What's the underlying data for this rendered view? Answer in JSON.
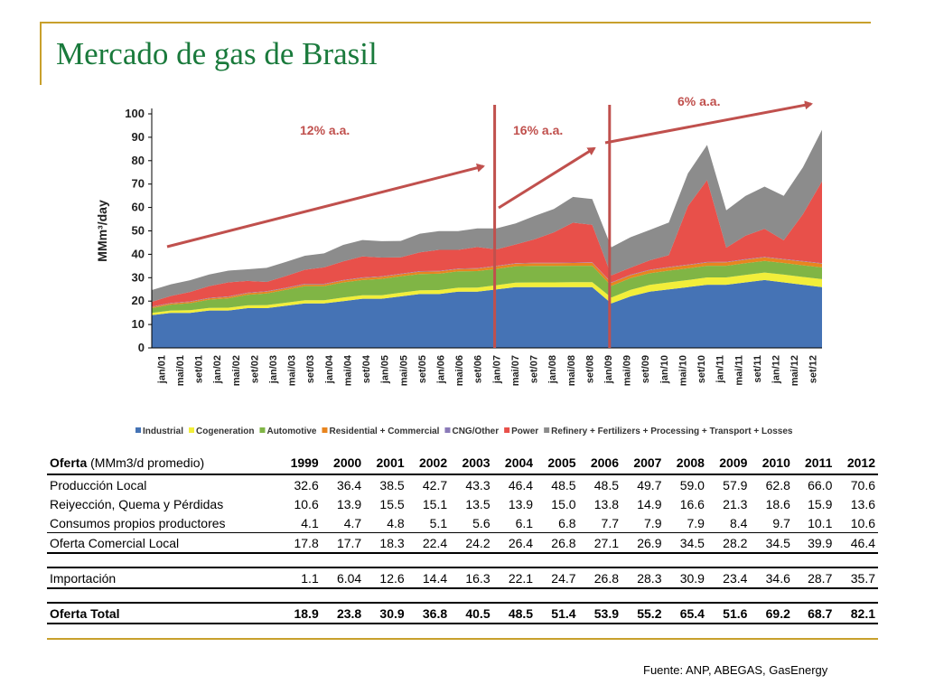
{
  "slide_title": "Mercado de gas de Brasil",
  "source": "Fuente: ANP, ABEGAS, GasEnergy",
  "chart_data": {
    "type": "area",
    "stacked": true,
    "ylabel": "MMm³/day",
    "ylim": [
      0,
      100
    ],
    "yticks": [
      0,
      10,
      20,
      30,
      40,
      50,
      60,
      70,
      80,
      90,
      100
    ],
    "x_tick_labels": [
      "jan/01",
      "mai/01",
      "set/01",
      "jan/02",
      "mai/02",
      "set/02",
      "jan/03",
      "mai/03",
      "set/03",
      "jan/04",
      "mai/04",
      "set/04",
      "jan/05",
      "mai/05",
      "set/05",
      "jan/06",
      "mai/06",
      "set/06",
      "jan/07",
      "mai/07",
      "set/07",
      "jan/08",
      "mai/08",
      "set/08",
      "jan/09",
      "mai/09",
      "set/09",
      "jan/10",
      "mai/10",
      "set/10",
      "jan/11",
      "mai/11",
      "set/11",
      "jan/12",
      "mai/12",
      "set/12"
    ],
    "series": [
      {
        "name": "Industrial",
        "color": "#4573b5",
        "values": [
          14,
          15,
          15,
          16,
          16,
          17,
          17,
          18,
          19,
          19,
          20,
          21,
          21,
          22,
          23,
          23,
          24,
          24,
          25,
          26,
          26,
          26,
          26,
          26,
          19,
          22,
          24,
          25,
          26,
          27,
          27,
          28,
          29,
          28,
          27,
          26
        ]
      },
      {
        "name": "Cogeneration",
        "color": "#f2ee3a",
        "values": [
          1.0,
          1.0,
          1.1,
          1.1,
          1.2,
          1.2,
          1.3,
          1.3,
          1.4,
          1.4,
          1.5,
          1.5,
          1.5,
          1.6,
          1.6,
          1.7,
          1.7,
          1.8,
          1.8,
          1.9,
          2.0,
          2.0,
          2.1,
          2.1,
          2.5,
          2.8,
          2.9,
          3.0,
          3.0,
          3.1,
          3.1,
          3.2,
          3.2,
          3.3,
          3.3,
          3.4
        ]
      },
      {
        "name": "Automotive",
        "color": "#80b545",
        "values": [
          2,
          2.5,
          3,
          3.5,
          4,
          4.5,
          5,
          5.5,
          6,
          6,
          6.5,
          6.5,
          7,
          7,
          7,
          7,
          7,
          7,
          7,
          7,
          7,
          7,
          7,
          7,
          5,
          5,
          5,
          5,
          5,
          5,
          5,
          5,
          5,
          5,
          5,
          5
        ]
      },
      {
        "name": "Residential + Commercial",
        "color": "#e8851f",
        "values": [
          0.5,
          0.5,
          0.6,
          0.6,
          0.6,
          0.7,
          0.7,
          0.7,
          0.8,
          0.8,
          0.8,
          0.9,
          0.9,
          0.9,
          1.0,
          1.0,
          1.0,
          1.1,
          1.1,
          1.1,
          1.2,
          1.2,
          1.2,
          1.3,
          1.3,
          1.3,
          1.3,
          1.4,
          1.4,
          1.4,
          1.5,
          1.5,
          1.5,
          1.5,
          1.6,
          1.6
        ]
      },
      {
        "name": "CNG/Other",
        "color": "#8a7ab8",
        "values": [
          0.2,
          0.2,
          0.2,
          0.2,
          0.2,
          0.2,
          0.2,
          0.2,
          0.2,
          0.2,
          0.2,
          0.2,
          0.2,
          0.2,
          0.2,
          0.2,
          0.2,
          0.2,
          0.2,
          0.2,
          0.2,
          0.2,
          0.2,
          0.2,
          0.2,
          0.2,
          0.2,
          0.2,
          0.2,
          0.2,
          0.2,
          0.2,
          0.2,
          0.2,
          0.2,
          0.2
        ]
      },
      {
        "name": "Power",
        "color": "#e8504a",
        "values": [
          2,
          3,
          4,
          5,
          6,
          5,
          4,
          5,
          6,
          7,
          8,
          9,
          8,
          7,
          8,
          9,
          8,
          9,
          7,
          8,
          10,
          13,
          17,
          16,
          3,
          3,
          4,
          5,
          25,
          35,
          6,
          10,
          12,
          8,
          20,
          35
        ]
      },
      {
        "name": "Refinery + Fertilizers + Processing + Transport + Losses",
        "color": "#8c8c8c",
        "values": [
          5,
          5,
          5,
          5,
          5,
          5,
          6,
          6,
          6,
          6,
          7,
          7,
          7,
          7,
          8,
          8,
          8,
          8,
          9,
          9,
          10,
          10,
          11,
          11,
          12,
          13,
          13,
          14,
          14,
          15,
          16,
          17,
          18,
          19,
          20,
          22
        ]
      }
    ],
    "annotations": [
      {
        "text": "12% a.a.",
        "color": "#c0504d"
      },
      {
        "text": "16% a.a.",
        "color": "#c0504d"
      },
      {
        "text": "6% a.a.",
        "color": "#c0504d"
      }
    ]
  },
  "table": {
    "header_bold": "Oferta",
    "header_rest": " (MMm3/d promedio)",
    "years": [
      "1999",
      "2000",
      "2001",
      "2002",
      "2003",
      "2004",
      "2005",
      "2006",
      "2007",
      "2008",
      "2009",
      "2010",
      "2011",
      "2012"
    ],
    "rows": [
      {
        "label": "Producción Local",
        "values": [
          "32.6",
          "36.4",
          "38.5",
          "42.7",
          "43.3",
          "46.4",
          "48.5",
          "48.5",
          "49.7",
          "59.0",
          "57.9",
          "62.8",
          "66.0",
          "70.6"
        ]
      },
      {
        "label": "Reiyección, Quema y Pérdidas",
        "values": [
          "10.6",
          "13.9",
          "15.5",
          "15.1",
          "13.5",
          "13.9",
          "15.0",
          "13.8",
          "14.9",
          "16.6",
          "21.3",
          "18.6",
          "15.9",
          "13.6"
        ]
      },
      {
        "label": "Consumos propios productores",
        "values": [
          "4.1",
          "4.7",
          "4.8",
          "5.1",
          "5.6",
          "6.1",
          "6.8",
          "7.7",
          "7.9",
          "7.9",
          "8.4",
          "9.7",
          "10.1",
          "10.6"
        ]
      }
    ],
    "subtotal": {
      "label": "Oferta Comercial Local",
      "values": [
        "17.8",
        "17.7",
        "18.3",
        "22.4",
        "24.2",
        "26.4",
        "26.8",
        "27.1",
        "26.9",
        "34.5",
        "28.2",
        "34.5",
        "39.9",
        "46.4"
      ]
    },
    "import": {
      "label": "Importación",
      "values": [
        "1.1",
        "6.04",
        "12.6",
        "14.4",
        "16.3",
        "22.1",
        "24.7",
        "26.8",
        "28.3",
        "30.9",
        "23.4",
        "34.6",
        "28.7",
        "35.7"
      ]
    },
    "total": {
      "label": "Oferta Total",
      "values": [
        "18.9",
        "23.8",
        "30.9",
        "36.8",
        "40.5",
        "48.5",
        "51.4",
        "53.9",
        "55.2",
        "65.4",
        "51.6",
        "69.2",
        "68.7",
        "82.1"
      ]
    }
  }
}
